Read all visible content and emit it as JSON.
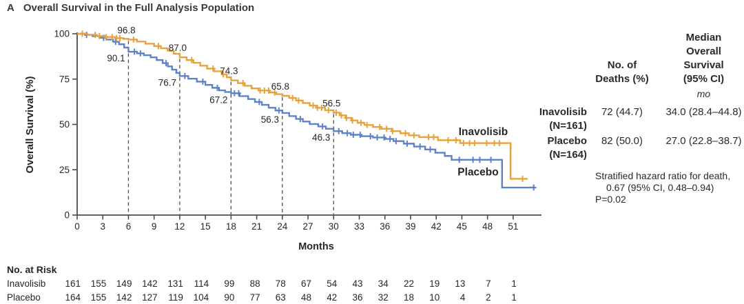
{
  "figure": {
    "panel_letter": "A",
    "title": "Overall Survival in the Full Analysis Population"
  },
  "colors": {
    "inavolisib": "#E8A23C",
    "placebo": "#5E82C8",
    "axis": "#4a4a4a",
    "dashed_line": "#4d4d4d",
    "text": "#262626"
  },
  "chart_data": {
    "type": "line",
    "subtype": "kaplan-meier-step",
    "title": "Overall Survival in the Full Analysis Population",
    "xlabel": "Months",
    "ylabel": "Overall Survival (%)",
    "xlim": [
      0,
      54
    ],
    "ylim": [
      0,
      100
    ],
    "xticks": [
      0,
      3,
      6,
      9,
      12,
      15,
      18,
      21,
      24,
      27,
      30,
      33,
      36,
      39,
      42,
      45,
      48,
      51
    ],
    "yticks": [
      0,
      25,
      50,
      75,
      100
    ],
    "grid": false,
    "dashed_reference_months": [
      6,
      12,
      18,
      24,
      30
    ],
    "series": [
      {
        "name": "Inavolisib",
        "color": "#E8A23C",
        "points": [
          [
            0,
            100
          ],
          [
            1.2,
            99.4
          ],
          [
            2.3,
            98.8
          ],
          [
            3.3,
            98.2
          ],
          [
            4.4,
            97.6
          ],
          [
            5.4,
            97.2
          ],
          [
            6,
            96.8
          ],
          [
            7,
            95.7
          ],
          [
            8,
            94.5
          ],
          [
            9,
            93.2
          ],
          [
            9.8,
            92
          ],
          [
            10.6,
            90.6
          ],
          [
            11.3,
            89
          ],
          [
            12,
            87
          ],
          [
            12.8,
            85.5
          ],
          [
            13.6,
            84
          ],
          [
            14.4,
            82.4
          ],
          [
            15.2,
            80.8
          ],
          [
            16,
            79.3
          ],
          [
            16.9,
            77.6
          ],
          [
            17.5,
            76
          ],
          [
            18,
            74.3
          ],
          [
            18.8,
            72.8
          ],
          [
            19.6,
            71.3
          ],
          [
            20.4,
            69.9
          ],
          [
            21.2,
            68.7
          ],
          [
            22.5,
            67.6
          ],
          [
            23.3,
            66.7
          ],
          [
            24,
            65.8
          ],
          [
            24.8,
            64.6
          ],
          [
            25.6,
            63.2
          ],
          [
            26.4,
            61.8
          ],
          [
            27.2,
            60.4
          ],
          [
            28,
            59.2
          ],
          [
            29,
            57.8
          ],
          [
            30,
            56.5
          ],
          [
            30.7,
            55
          ],
          [
            31.4,
            53.6
          ],
          [
            32.1,
            52.2
          ],
          [
            32.8,
            50.9
          ],
          [
            33.6,
            49.7
          ],
          [
            34.6,
            48.6
          ],
          [
            35.6,
            47.6
          ],
          [
            36.8,
            46.3
          ],
          [
            37.8,
            45.1
          ],
          [
            38.8,
            44
          ],
          [
            40,
            43
          ],
          [
            42.2,
            41.3
          ],
          [
            44.8,
            39.7
          ],
          [
            50.7,
            20
          ]
        ],
        "end_month": 52.7,
        "censor_months": [
          0.6,
          2.1,
          2.6,
          3.4,
          4.1,
          4.6,
          5.0,
          6.6,
          9.5,
          13.4,
          15.9,
          17.1,
          19.4,
          21.4,
          21.9,
          22.4,
          23.1,
          25.2,
          25.9,
          27.6,
          28.1,
          28.6,
          29.4,
          30.3,
          30.9,
          31.5,
          32.2,
          33.2,
          33.9,
          35.4,
          36.2,
          36.9,
          38.4,
          39.4,
          41.1,
          41.7,
          43.4,
          44.3,
          45.2,
          45.9,
          46.5,
          47.9,
          48.8,
          49.4,
          52.1
        ],
        "annotations": [
          {
            "month": 6,
            "value": 96.8,
            "label": "96.8"
          },
          {
            "month": 12,
            "value": 87.0,
            "label": "87.0"
          },
          {
            "month": 18,
            "value": 74.3,
            "label": "74.3"
          },
          {
            "month": 24,
            "value": 65.8,
            "label": "65.8"
          },
          {
            "month": 30,
            "value": 56.5,
            "label": "56.5"
          }
        ],
        "ann_offset": {
          "dx": -3,
          "dy": -9
        },
        "curve_label": {
          "month": 47.5,
          "pct": 44.2
        }
      },
      {
        "name": "Placebo",
        "color": "#5E82C8",
        "points": [
          [
            0,
            100
          ],
          [
            0.9,
            99.4
          ],
          [
            1.8,
            98.7
          ],
          [
            2.6,
            97.8
          ],
          [
            3.4,
            96.8
          ],
          [
            4.2,
            95.6
          ],
          [
            4.9,
            94.2
          ],
          [
            5.5,
            92.4
          ],
          [
            6,
            90.1
          ],
          [
            7,
            89.2
          ],
          [
            7.8,
            88.2
          ],
          [
            8.6,
            87
          ],
          [
            9.3,
            85.5
          ],
          [
            10,
            83.8
          ],
          [
            10.6,
            82
          ],
          [
            11.1,
            80.2
          ],
          [
            11.6,
            78.4
          ],
          [
            12,
            76.7
          ],
          [
            13,
            75.2
          ],
          [
            14,
            73.6
          ],
          [
            15,
            71.8
          ],
          [
            15.8,
            70.2
          ],
          [
            16.6,
            68.8
          ],
          [
            17.3,
            67.9
          ],
          [
            18,
            67.2
          ],
          [
            19,
            65.6
          ],
          [
            20,
            64
          ],
          [
            20.8,
            62.4
          ],
          [
            21.6,
            60.8
          ],
          [
            22.4,
            59.2
          ],
          [
            23.2,
            57.7
          ],
          [
            24,
            56.3
          ],
          [
            24.8,
            54.6
          ],
          [
            25.6,
            53
          ],
          [
            26.4,
            51.6
          ],
          [
            27.2,
            50.2
          ],
          [
            28.2,
            48.9
          ],
          [
            29.1,
            47.6
          ],
          [
            30,
            46.3
          ],
          [
            31,
            45.2
          ],
          [
            32,
            44.3
          ],
          [
            33.2,
            43.5
          ],
          [
            34.6,
            42.8
          ],
          [
            36,
            42
          ],
          [
            37,
            40.8
          ],
          [
            38.2,
            39.4
          ],
          [
            39.4,
            37.8
          ],
          [
            40.7,
            36.2
          ],
          [
            41.9,
            34.4
          ],
          [
            43,
            32.6
          ],
          [
            43.8,
            30.5
          ],
          [
            49.7,
            15.2
          ]
        ],
        "end_month": 53.7,
        "censor_months": [
          1.1,
          3.1,
          4.5,
          6.7,
          7.4,
          10.4,
          12.6,
          14.7,
          16.4,
          18.4,
          18.9,
          21.3,
          23.6,
          26.1,
          28.7,
          30.6,
          31.6,
          32.3,
          33.1,
          34.3,
          35.1,
          35.9,
          36.6,
          37.3,
          38.6,
          40.1,
          41.3,
          44.7,
          46.3,
          47.1,
          48.4,
          53.4
        ],
        "annotations": [
          {
            "month": 6,
            "value": 90.1,
            "label": "90.1"
          },
          {
            "month": 12,
            "value": 76.7,
            "label": "76.7"
          },
          {
            "month": 18,
            "value": 67.2,
            "label": "67.2"
          },
          {
            "month": 24,
            "value": 56.3,
            "label": "56.3"
          },
          {
            "month": 30,
            "value": 46.3,
            "label": "46.3"
          }
        ],
        "ann_offset": {
          "dx": -18,
          "dy": 14
        },
        "curve_label": {
          "month": 46.9,
          "pct": 21.8
        }
      }
    ]
  },
  "at_risk": {
    "heading": "No. at Risk",
    "rows": [
      {
        "name": "Inavolisib",
        "values": [
          161,
          155,
          149,
          142,
          131,
          114,
          99,
          88,
          78,
          67,
          54,
          43,
          34,
          22,
          19,
          13,
          7,
          1
        ]
      },
      {
        "name": "Placebo",
        "values": [
          164,
          155,
          142,
          127,
          119,
          104,
          90,
          77,
          63,
          48,
          42,
          36,
          32,
          18,
          10,
          4,
          2,
          1
        ]
      }
    ]
  },
  "summary_table": {
    "col1_header_lines": [
      "No. of",
      "Deaths (%)"
    ],
    "col2_header_lines": [
      "Median",
      "Overall",
      "Survival",
      "(95% CI)"
    ],
    "units": "mo",
    "rows": [
      {
        "name_line1": "Inavolisib",
        "name_line2": "(N=161)",
        "deaths": "72 (44.7)",
        "median": "34.0 (28.4–44.8)"
      },
      {
        "name_line1": "Placebo",
        "name_line2": "(N=164)",
        "deaths": "82 (50.0)",
        "median": "27.0 (22.8–38.7)"
      }
    ]
  },
  "hazard_note": {
    "line1": "Stratified hazard ratio for death,",
    "line2": "0.67 (95% CI, 0.48–0.94)",
    "line3": "P=0.02"
  }
}
